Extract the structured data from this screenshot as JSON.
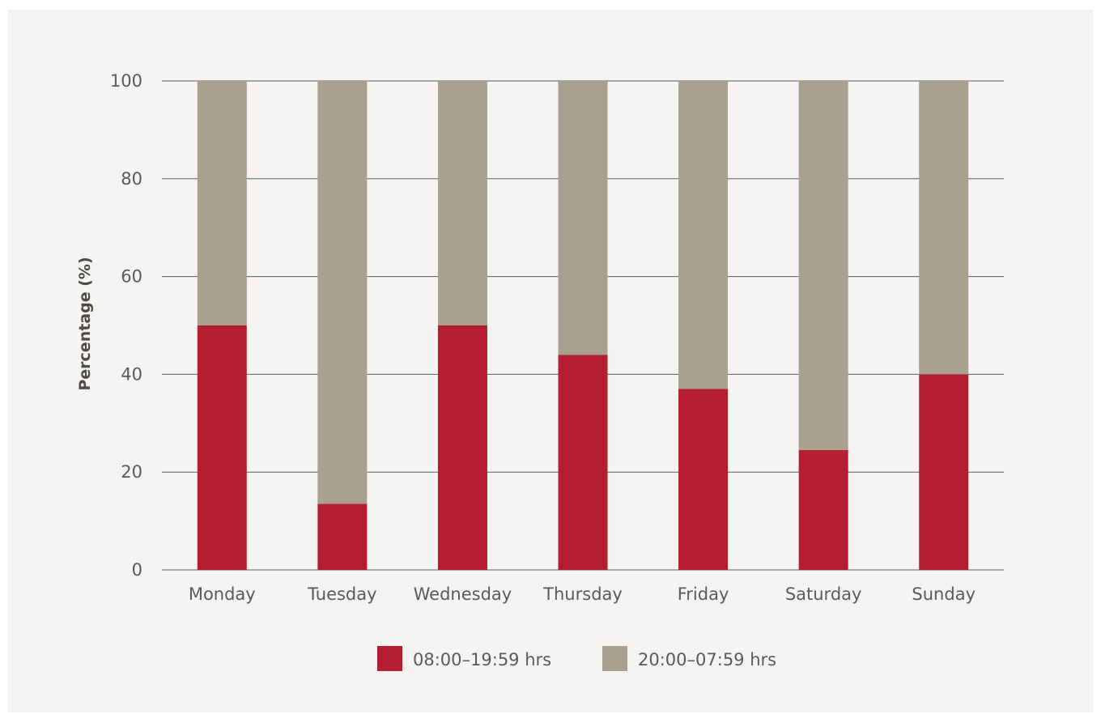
{
  "chart_data": {
    "type": "bar",
    "stacked": true,
    "categories": [
      "Monday",
      "Tuesday",
      "Wednesday",
      "Thursday",
      "Friday",
      "Saturday",
      "Sunday"
    ],
    "series": [
      {
        "name": "08:00–19:59 hrs",
        "color": "#b51d31",
        "values": [
          50,
          13.5,
          50,
          44,
          37,
          24.5,
          40
        ]
      },
      {
        "name": "20:00–07:59 hrs",
        "color": "#a8a190",
        "values": [
          50,
          86.5,
          50,
          56,
          63,
          75.5,
          60
        ]
      }
    ],
    "ylabel": "Percentage (%)",
    "xlabel": "",
    "ylim": [
      0,
      100
    ],
    "yticks": [
      0,
      20,
      40,
      60,
      80,
      100
    ],
    "grid": true,
    "legend": "bottom-center"
  }
}
